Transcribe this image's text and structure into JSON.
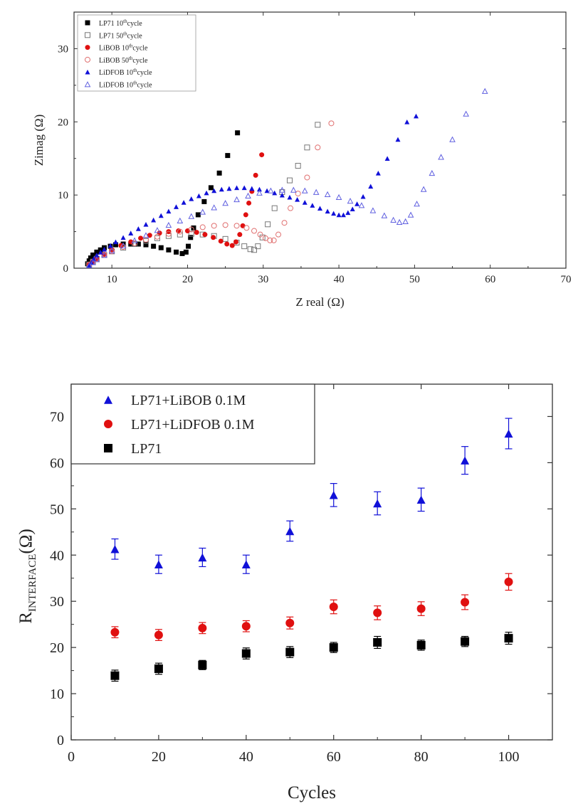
{
  "chart_data": [
    {
      "type": "scatter",
      "xlabel": "Z real (Ω)",
      "ylabel": "Zimag (Ω)",
      "xlim": [
        5,
        70
      ],
      "ylim": [
        0,
        35
      ],
      "xticks": [
        10,
        20,
        30,
        40,
        50,
        60,
        70
      ],
      "yticks": [
        0,
        10,
        20,
        30
      ],
      "grid": false,
      "legend": "top-left",
      "series": [
        {
          "name": "LP71 10thcycle",
          "legend_main": "LP71 10",
          "legend_sup": "th",
          "legend_tail": "cycle",
          "color": "#000000",
          "marker": "square",
          "filled": true,
          "x": [
            6.8,
            7.0,
            7.2,
            7.5,
            8.0,
            8.5,
            9.0,
            9.8,
            10.5,
            11.5,
            12.5,
            13.5,
            14.5,
            15.5,
            16.5,
            17.5,
            18.5,
            19.3,
            19.8,
            20.1,
            20.4,
            20.8,
            21.4,
            22.2,
            23.1,
            24.2,
            25.3,
            26.6
          ],
          "y": [
            0.6,
            1.0,
            1.4,
            1.8,
            2.2,
            2.5,
            2.8,
            3.0,
            3.2,
            3.3,
            3.3,
            3.3,
            3.2,
            3.0,
            2.8,
            2.5,
            2.2,
            2.0,
            2.2,
            3.0,
            4.2,
            5.5,
            7.3,
            9.1,
            11.0,
            13.0,
            15.4,
            18.5
          ]
        },
        {
          "name": "LP71 50thcycle",
          "legend_main": "LP71 50",
          "legend_sup": "th",
          "legend_tail": "cycle",
          "color": "#777777",
          "marker": "square",
          "filled": false,
          "x": [
            7.0,
            7.5,
            8.0,
            9.0,
            10.0,
            11.5,
            13.0,
            14.5,
            16.0,
            17.5,
            19.0,
            20.5,
            22.0,
            23.5,
            25.0,
            26.5,
            27.5,
            28.3,
            28.8,
            29.3,
            29.9,
            30.6,
            31.5,
            32.5,
            33.5,
            34.6,
            35.8,
            37.2
          ],
          "y": [
            0.5,
            0.9,
            1.3,
            1.8,
            2.3,
            2.8,
            3.3,
            3.7,
            4.1,
            4.4,
            4.6,
            4.7,
            4.6,
            4.4,
            4.0,
            3.5,
            3.0,
            2.6,
            2.5,
            3.0,
            4.2,
            6.0,
            8.2,
            10.4,
            12.0,
            14.0,
            16.5,
            19.6
          ]
        },
        {
          "name": "LiBOB 10thcycle",
          "legend_main": "LiBOB 10",
          "legend_sup": "th",
          "legend_tail": "cycle",
          "color": "#e01010",
          "marker": "circle",
          "filled": true,
          "x": [
            7.0,
            7.5,
            8.0,
            9.0,
            10.0,
            11.2,
            12.5,
            13.8,
            15.0,
            16.3,
            17.5,
            18.8,
            20.0,
            21.2,
            22.3,
            23.4,
            24.4,
            25.2,
            25.9,
            26.4,
            26.9,
            27.3,
            27.7,
            28.1,
            28.5,
            29.0,
            29.8
          ],
          "y": [
            0.5,
            0.9,
            1.3,
            1.9,
            2.5,
            3.1,
            3.6,
            4.1,
            4.5,
            4.8,
            5.0,
            5.1,
            5.1,
            4.9,
            4.6,
            4.2,
            3.7,
            3.3,
            3.1,
            3.6,
            4.6,
            5.8,
            7.3,
            8.9,
            10.5,
            12.7,
            15.5
          ]
        },
        {
          "name": "LiBOB 50thcycle",
          "legend_main": "LiBOB 50",
          "legend_sup": "th",
          "legend_tail": "cycle",
          "color": "#e07070",
          "marker": "circle",
          "filled": false,
          "x": [
            7.0,
            7.5,
            8.0,
            9.0,
            10.0,
            11.5,
            13.0,
            14.5,
            16.0,
            17.5,
            19.0,
            20.5,
            22.0,
            23.5,
            25.0,
            26.5,
            27.8,
            28.8,
            29.6,
            30.3,
            30.9,
            31.4,
            32.0,
            32.8,
            33.6,
            34.6,
            35.8,
            37.2,
            39.0
          ],
          "y": [
            0.5,
            0.9,
            1.3,
            1.8,
            2.3,
            2.9,
            3.4,
            3.9,
            4.3,
            4.7,
            5.0,
            5.3,
            5.6,
            5.8,
            5.9,
            5.8,
            5.5,
            5.1,
            4.6,
            4.1,
            3.8,
            3.8,
            4.6,
            6.2,
            8.2,
            10.2,
            12.4,
            16.5,
            19.8
          ]
        },
        {
          "name": "LiDFOB 10thcycle",
          "legend_main": "LiDFOB 10",
          "legend_sup": "th",
          "legend_tail": "cycle",
          "color": "#1010d8",
          "marker": "triangle",
          "filled": true,
          "x": [
            7.0,
            7.3,
            7.6,
            8.0,
            8.5,
            9.0,
            9.8,
            10.5,
            11.5,
            12.5,
            13.5,
            14.5,
            15.5,
            16.5,
            17.5,
            18.5,
            19.5,
            20.5,
            21.5,
            22.5,
            23.5,
            24.5,
            25.5,
            26.5,
            27.5,
            28.5,
            29.5,
            30.5,
            31.5,
            32.5,
            33.5,
            34.5,
            35.5,
            36.5,
            37.5,
            38.5,
            39.3,
            40.0,
            40.6,
            41.2,
            41.8,
            42.4,
            43.2,
            44.2,
            45.2,
            46.4,
            47.8,
            49.0,
            50.2
          ],
          "y": [
            0.4,
            0.8,
            1.3,
            1.8,
            2.2,
            2.6,
            3.1,
            3.6,
            4.2,
            4.8,
            5.4,
            6.0,
            6.6,
            7.2,
            7.8,
            8.4,
            9.0,
            9.5,
            9.9,
            10.3,
            10.6,
            10.8,
            10.9,
            11.0,
            11.0,
            10.9,
            10.8,
            10.6,
            10.3,
            10.0,
            9.7,
            9.4,
            9.0,
            8.6,
            8.2,
            7.8,
            7.5,
            7.3,
            7.3,
            7.6,
            8.1,
            8.8,
            9.8,
            11.2,
            13.0,
            15.0,
            17.6,
            20.0,
            20.8
          ]
        },
        {
          "name": "LiDFOB 10thcycle",
          "legend_main": "LiDFOB 10",
          "legend_sup": "th",
          "legend_tail": "cycle",
          "color": "#6060e0",
          "marker": "triangle",
          "filled": false,
          "x": [
            7.0,
            7.5,
            8.0,
            9.0,
            10.0,
            11.5,
            13.0,
            14.5,
            16.0,
            17.5,
            19.0,
            20.5,
            22.0,
            23.5,
            25.0,
            26.5,
            28.0,
            29.5,
            31.0,
            32.5,
            34.0,
            35.5,
            37.0,
            38.5,
            40.0,
            41.5,
            43.0,
            44.5,
            46.0,
            47.2,
            48.0,
            48.8,
            49.5,
            50.3,
            51.2,
            52.3,
            53.5,
            55.0,
            56.8,
            59.3
          ],
          "y": [
            0.4,
            0.8,
            1.2,
            1.8,
            2.4,
            3.1,
            3.8,
            4.5,
            5.2,
            5.9,
            6.5,
            7.1,
            7.7,
            8.3,
            8.9,
            9.4,
            9.9,
            10.3,
            10.6,
            10.7,
            10.7,
            10.6,
            10.4,
            10.1,
            9.7,
            9.2,
            8.6,
            7.9,
            7.2,
            6.6,
            6.3,
            6.4,
            7.3,
            8.8,
            10.8,
            13.0,
            15.2,
            17.6,
            21.1,
            24.2
          ]
        }
      ]
    },
    {
      "type": "scatter",
      "xlabel": "Cycles",
      "ylabel_main": "R",
      "ylabel_sub": "INTERFACE",
      "ylabel_tail": "(Ω)",
      "xlim": [
        0,
        110
      ],
      "ylim": [
        0,
        77
      ],
      "xticks": [
        0,
        20,
        40,
        60,
        80,
        100
      ],
      "yticks": [
        0,
        10,
        20,
        30,
        40,
        50,
        60,
        70
      ],
      "grid": false,
      "legend": "top-left",
      "x": [
        10,
        20,
        30,
        40,
        50,
        60,
        70,
        80,
        90,
        100
      ],
      "series": [
        {
          "name": "LP71+LiBOB 0.1M",
          "color": "#1010d8",
          "marker": "triangle",
          "values": [
            41.3,
            38.0,
            39.5,
            38.0,
            45.2,
            53.0,
            51.2,
            52.0,
            60.5,
            66.3
          ],
          "errors": [
            2.2,
            2.0,
            2.0,
            2.0,
            2.2,
            2.5,
            2.5,
            2.5,
            3.0,
            3.3
          ]
        },
        {
          "name": "LP71+LiDFOB 0.1M",
          "color": "#e01010",
          "marker": "circle",
          "values": [
            23.3,
            22.7,
            24.2,
            24.6,
            25.3,
            28.8,
            27.5,
            28.4,
            29.8,
            34.2
          ],
          "errors": [
            1.2,
            1.2,
            1.2,
            1.2,
            1.3,
            1.5,
            1.5,
            1.5,
            1.6,
            1.8
          ]
        },
        {
          "name": "LP71",
          "color": "#000000",
          "marker": "square",
          "values": [
            13.9,
            15.4,
            16.2,
            18.7,
            19.0,
            20.0,
            21.1,
            20.5,
            21.3,
            22.0
          ],
          "errors": [
            1.2,
            1.2,
            1.0,
            1.2,
            1.2,
            1.1,
            1.3,
            1.1,
            1.1,
            1.3
          ]
        }
      ]
    }
  ]
}
